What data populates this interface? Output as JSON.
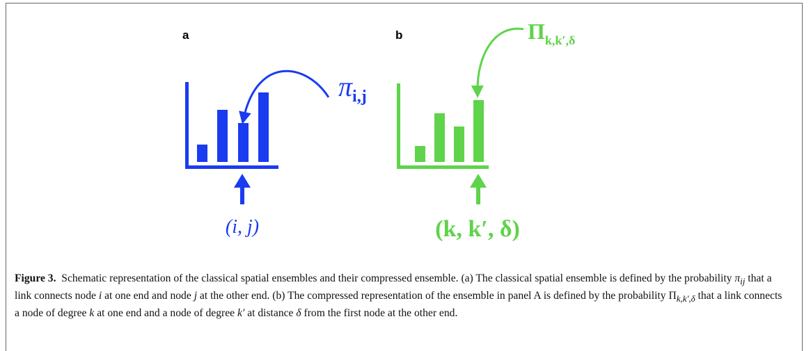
{
  "panel_a": {
    "letter": "a",
    "symbol": "π",
    "symbol_sub": "i,j",
    "index_label": "(i, j)"
  },
  "panel_b": {
    "letter": "b",
    "symbol": "Π",
    "symbol_sub": "k,k′,δ",
    "index_label": "(k, k′, δ)"
  },
  "caption": {
    "label": "Figure 3.",
    "parts": [
      "Schematic representation of the classical spatial ensembles and their compressed ensemble. (a) The classical spatial ensemble is defined by the probability ",
      "π",
      "ij",
      " that a link connects node ",
      "i",
      " at one end and node ",
      "j",
      " at the other end. (b) The compressed representation of the ensemble in panel A is defined by the probability ",
      "Π",
      "k,k′,δ",
      " that a link connects a node of degree ",
      "k",
      " at one end and a node of degree ",
      "k′",
      " at distance ",
      "δ",
      " from the first node at the other end."
    ]
  }
}
